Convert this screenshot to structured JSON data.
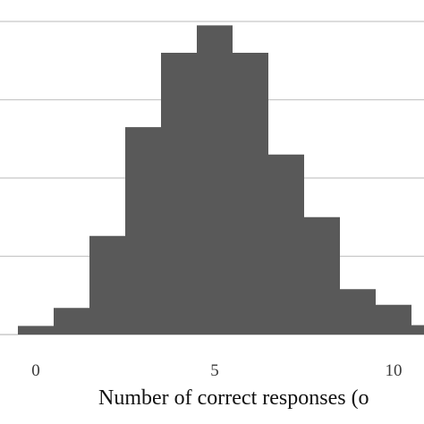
{
  "chart_data": {
    "type": "bar",
    "title": "",
    "xlabel": "Number of correct responses (o",
    "ylabel": "",
    "x_ticks": [
      "0",
      "5",
      "10"
    ],
    "x_tick_values": [
      0,
      5,
      10
    ],
    "bin_width": 1,
    "bin_centers": [
      0,
      1,
      2,
      3,
      4,
      5,
      6,
      7,
      8,
      9,
      10,
      11
    ],
    "values": [
      0.11,
      0.34,
      1.26,
      2.65,
      3.6,
      3.95,
      3.6,
      2.3,
      1.5,
      0.58,
      0.38,
      0.12
    ],
    "xlim": [
      -0.5,
      11.0
    ],
    "ylim": [
      0,
      4.3
    ],
    "gridlines_y": [
      0,
      1,
      2,
      3,
      4
    ],
    "grid": true,
    "bar_color": "#595959",
    "grid_color": "#c8c8c8"
  }
}
